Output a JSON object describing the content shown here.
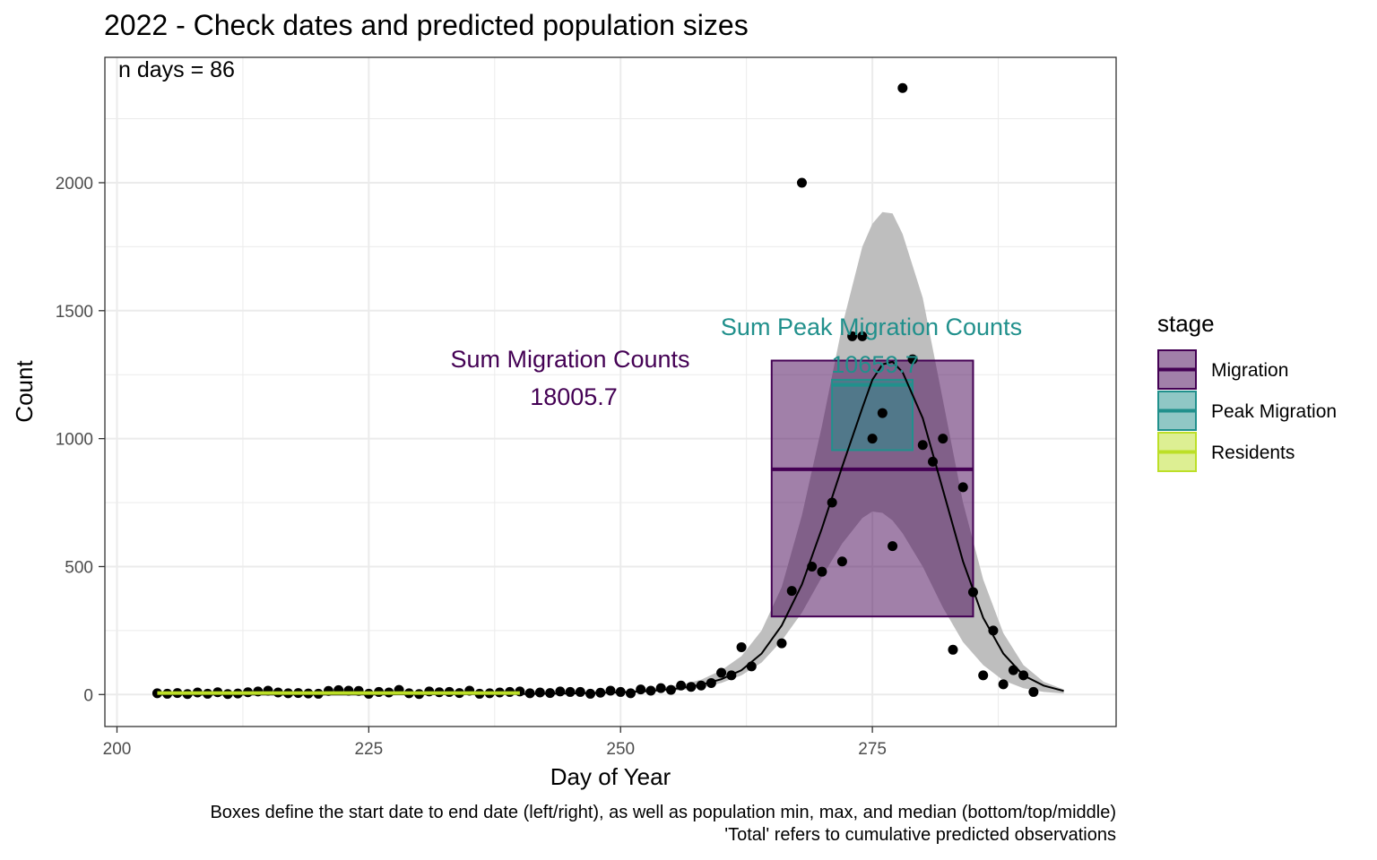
{
  "chart_data": {
    "type": "scatter",
    "title": "2022 - Check dates and predicted population sizes",
    "xlabel": "Day of Year",
    "ylabel": "Count",
    "xlim": [
      198.8,
      299.2
    ],
    "ylim": [
      -125,
      2490
    ],
    "x_ticks": [
      200,
      225,
      250,
      275
    ],
    "y_ticks": [
      0,
      500,
      1000,
      1500,
      2000
    ],
    "grid": true,
    "legend": {
      "title": "stage",
      "placement": "right",
      "entries": [
        {
          "name": "Migration",
          "color": "#440154"
        },
        {
          "name": "Peak Migration",
          "color": "#21908C"
        },
        {
          "name": "Residents",
          "color": "#BCDF27"
        }
      ]
    },
    "annotations": {
      "n_days": "n days = 86",
      "migration_label": "Sum Migration Counts",
      "migration_value": "18005.7",
      "peak_label": "Sum Peak Migration Counts",
      "peak_value": "10659.7"
    },
    "observed_counts": {
      "x": [
        204,
        205,
        206,
        207,
        208,
        209,
        210,
        211,
        212,
        213,
        214,
        215,
        216,
        217,
        218,
        219,
        220,
        221,
        222,
        223,
        224,
        225,
        226,
        227,
        228,
        229,
        230,
        231,
        232,
        233,
        234,
        235,
        236,
        237,
        238,
        239,
        240,
        241,
        242,
        243,
        244,
        245,
        246,
        247,
        248,
        249,
        250,
        251,
        252,
        253,
        254,
        255,
        256,
        257,
        258,
        259,
        260,
        261,
        262,
        263,
        266,
        267,
        268,
        269,
        270,
        271,
        272,
        273,
        274,
        275,
        276,
        277,
        278,
        279,
        280,
        281,
        282,
        283,
        284,
        285,
        286,
        287,
        288,
        289,
        290,
        291
      ],
      "y": [
        5,
        3,
        6,
        2,
        8,
        3,
        9,
        2,
        4,
        9,
        12,
        15,
        8,
        5,
        6,
        4,
        3,
        14,
        17,
        15,
        14,
        3,
        10,
        8,
        18,
        5,
        2,
        12,
        9,
        10,
        6,
        15,
        3,
        5,
        8,
        10,
        12,
        5,
        8,
        6,
        12,
        10,
        10,
        3,
        7,
        15,
        10,
        5,
        20,
        15,
        25,
        18,
        35,
        30,
        35,
        45,
        85,
        75,
        185,
        110,
        200,
        405,
        2000,
        500,
        480,
        750,
        520,
        1400,
        1400,
        1000,
        1100,
        580,
        2370,
        1310,
        975,
        910,
        1000,
        175,
        810,
        400,
        75,
        250,
        40,
        95,
        75,
        10
      ]
    },
    "fitted_curve": {
      "x": [
        204,
        210,
        220,
        230,
        240,
        245,
        250,
        253,
        256,
        258,
        260,
        262,
        264,
        266,
        268,
        270,
        272,
        274,
        275,
        276,
        277,
        278,
        280,
        282,
        284,
        286,
        288,
        290,
        292,
        294
      ],
      "y": [
        0,
        0,
        0,
        1,
        2,
        4,
        8,
        14,
        25,
        38,
        60,
        95,
        160,
        270,
        430,
        650,
        890,
        1120,
        1230,
        1290,
        1300,
        1260,
        1080,
        800,
        520,
        300,
        160,
        75,
        35,
        14
      ],
      "ci_lower": [
        0,
        0,
        0,
        0,
        1,
        2,
        5,
        9,
        17,
        27,
        45,
        75,
        125,
        210,
        320,
        460,
        590,
        690,
        715,
        710,
        680,
        630,
        500,
        340,
        205,
        115,
        55,
        25,
        10,
        4
      ],
      "ci_upper": [
        1,
        1,
        2,
        2,
        4,
        7,
        13,
        22,
        38,
        58,
        95,
        150,
        250,
        420,
        700,
        1050,
        1440,
        1750,
        1840,
        1885,
        1880,
        1800,
        1550,
        1150,
        750,
        450,
        240,
        115,
        50,
        20
      ]
    },
    "stage_boxes": [
      {
        "stage": "Migration",
        "start_day": 265,
        "end_day": 285,
        "min": 305,
        "median": 880,
        "max": 1305,
        "total": "18005.7",
        "color": "#440154"
      },
      {
        "stage": "Peak Migration",
        "start_day": 271,
        "end_day": 279,
        "min": 955,
        "median": 1210,
        "max": 1230,
        "total": "10659.7",
        "color": "#21908C"
      }
    ],
    "residents_line": {
      "start_day": 204,
      "end_day": 240,
      "median": 6,
      "color": "#BCDF27"
    },
    "caption": [
      "Boxes define the start date to end date (left/right), as well as population min, max, and median (bottom/top/middle)",
      "'Total' refers to cumulative predicted observations"
    ]
  }
}
